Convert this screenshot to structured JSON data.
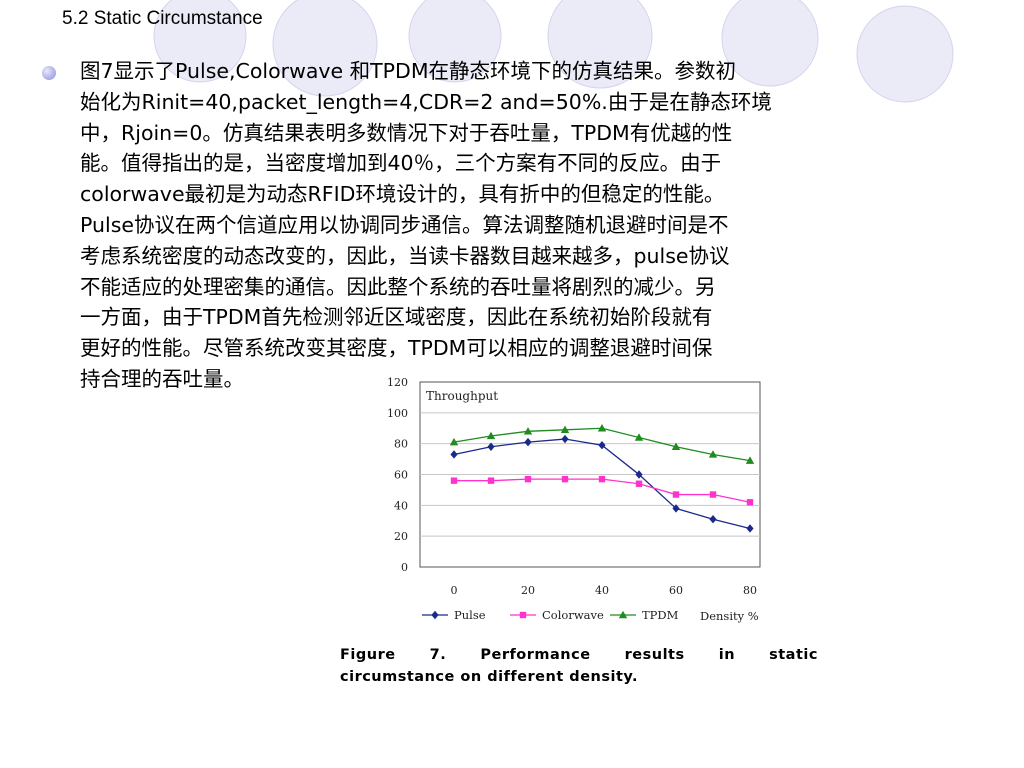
{
  "slide": {
    "title": "5.2 Static Circumstance",
    "paragraph_lines": [
      "图7显示了Pulse,Colorwave 和TPDM在静态环境下的仿真结果。参数初",
      "始化为Rinit=40,packet_length=4,CDR=2 and=50%.由于是在静态环境",
      "中，Rjoin=0。仿真结果表明多数情况下对于吞吐量，TPDM有优越的性",
      "能。值得指出的是，当密度增加到40％，三个方案有不同的反应。由于",
      "colorwave最初是为动态RFID环境设计的，具有折中的但稳定的性能。",
      "Pulse协议在两个信道应用以协调同步通信。算法调整随机退避时间是不",
      "考虑系统密度的动态改变的，因此，当读卡器数目越来越多，pulse协议",
      "不能适应的处理密集的通信。因此整个系统的吞吐量将剧烈的减少。另",
      "一方面，由于TPDM首先检测邻近区域密度，因此在系统初始阶段就有",
      "更好的性能。尽管系统改变其密度，TPDM可以相应的调整退避时间保",
      "持合理的吞吐量。"
    ],
    "caption": {
      "line1_words": [
        "Figure",
        "7.",
        "Performance",
        "results",
        "in",
        "static"
      ],
      "line2": "circumstance on different density."
    }
  },
  "chart_data": {
    "type": "line",
    "title": "Throughput",
    "xlabel": "Density %",
    "ylabel": "",
    "x": [
      0,
      10,
      20,
      30,
      40,
      50,
      60,
      70,
      80
    ],
    "xticks": [
      0,
      20,
      40,
      60,
      80
    ],
    "yticks": [
      0,
      20,
      40,
      60,
      80,
      100,
      120
    ],
    "xlim": [
      0,
      80
    ],
    "ylim": [
      0,
      120
    ],
    "grid": true,
    "legend": "bottom",
    "series": [
      {
        "name": "Pulse",
        "marker": "diamond",
        "color": "#1a2a8c",
        "values": [
          73,
          78,
          81,
          83,
          79,
          60,
          38,
          31,
          25
        ]
      },
      {
        "name": "Colorwave",
        "marker": "square",
        "color": "#ff33cc",
        "values": [
          56,
          56,
          57,
          57,
          57,
          54,
          47,
          47,
          42
        ]
      },
      {
        "name": "TPDM",
        "marker": "triangle",
        "color": "#1e8c1e",
        "values": [
          81,
          85,
          88,
          89,
          90,
          84,
          78,
          73,
          69
        ]
      }
    ]
  }
}
